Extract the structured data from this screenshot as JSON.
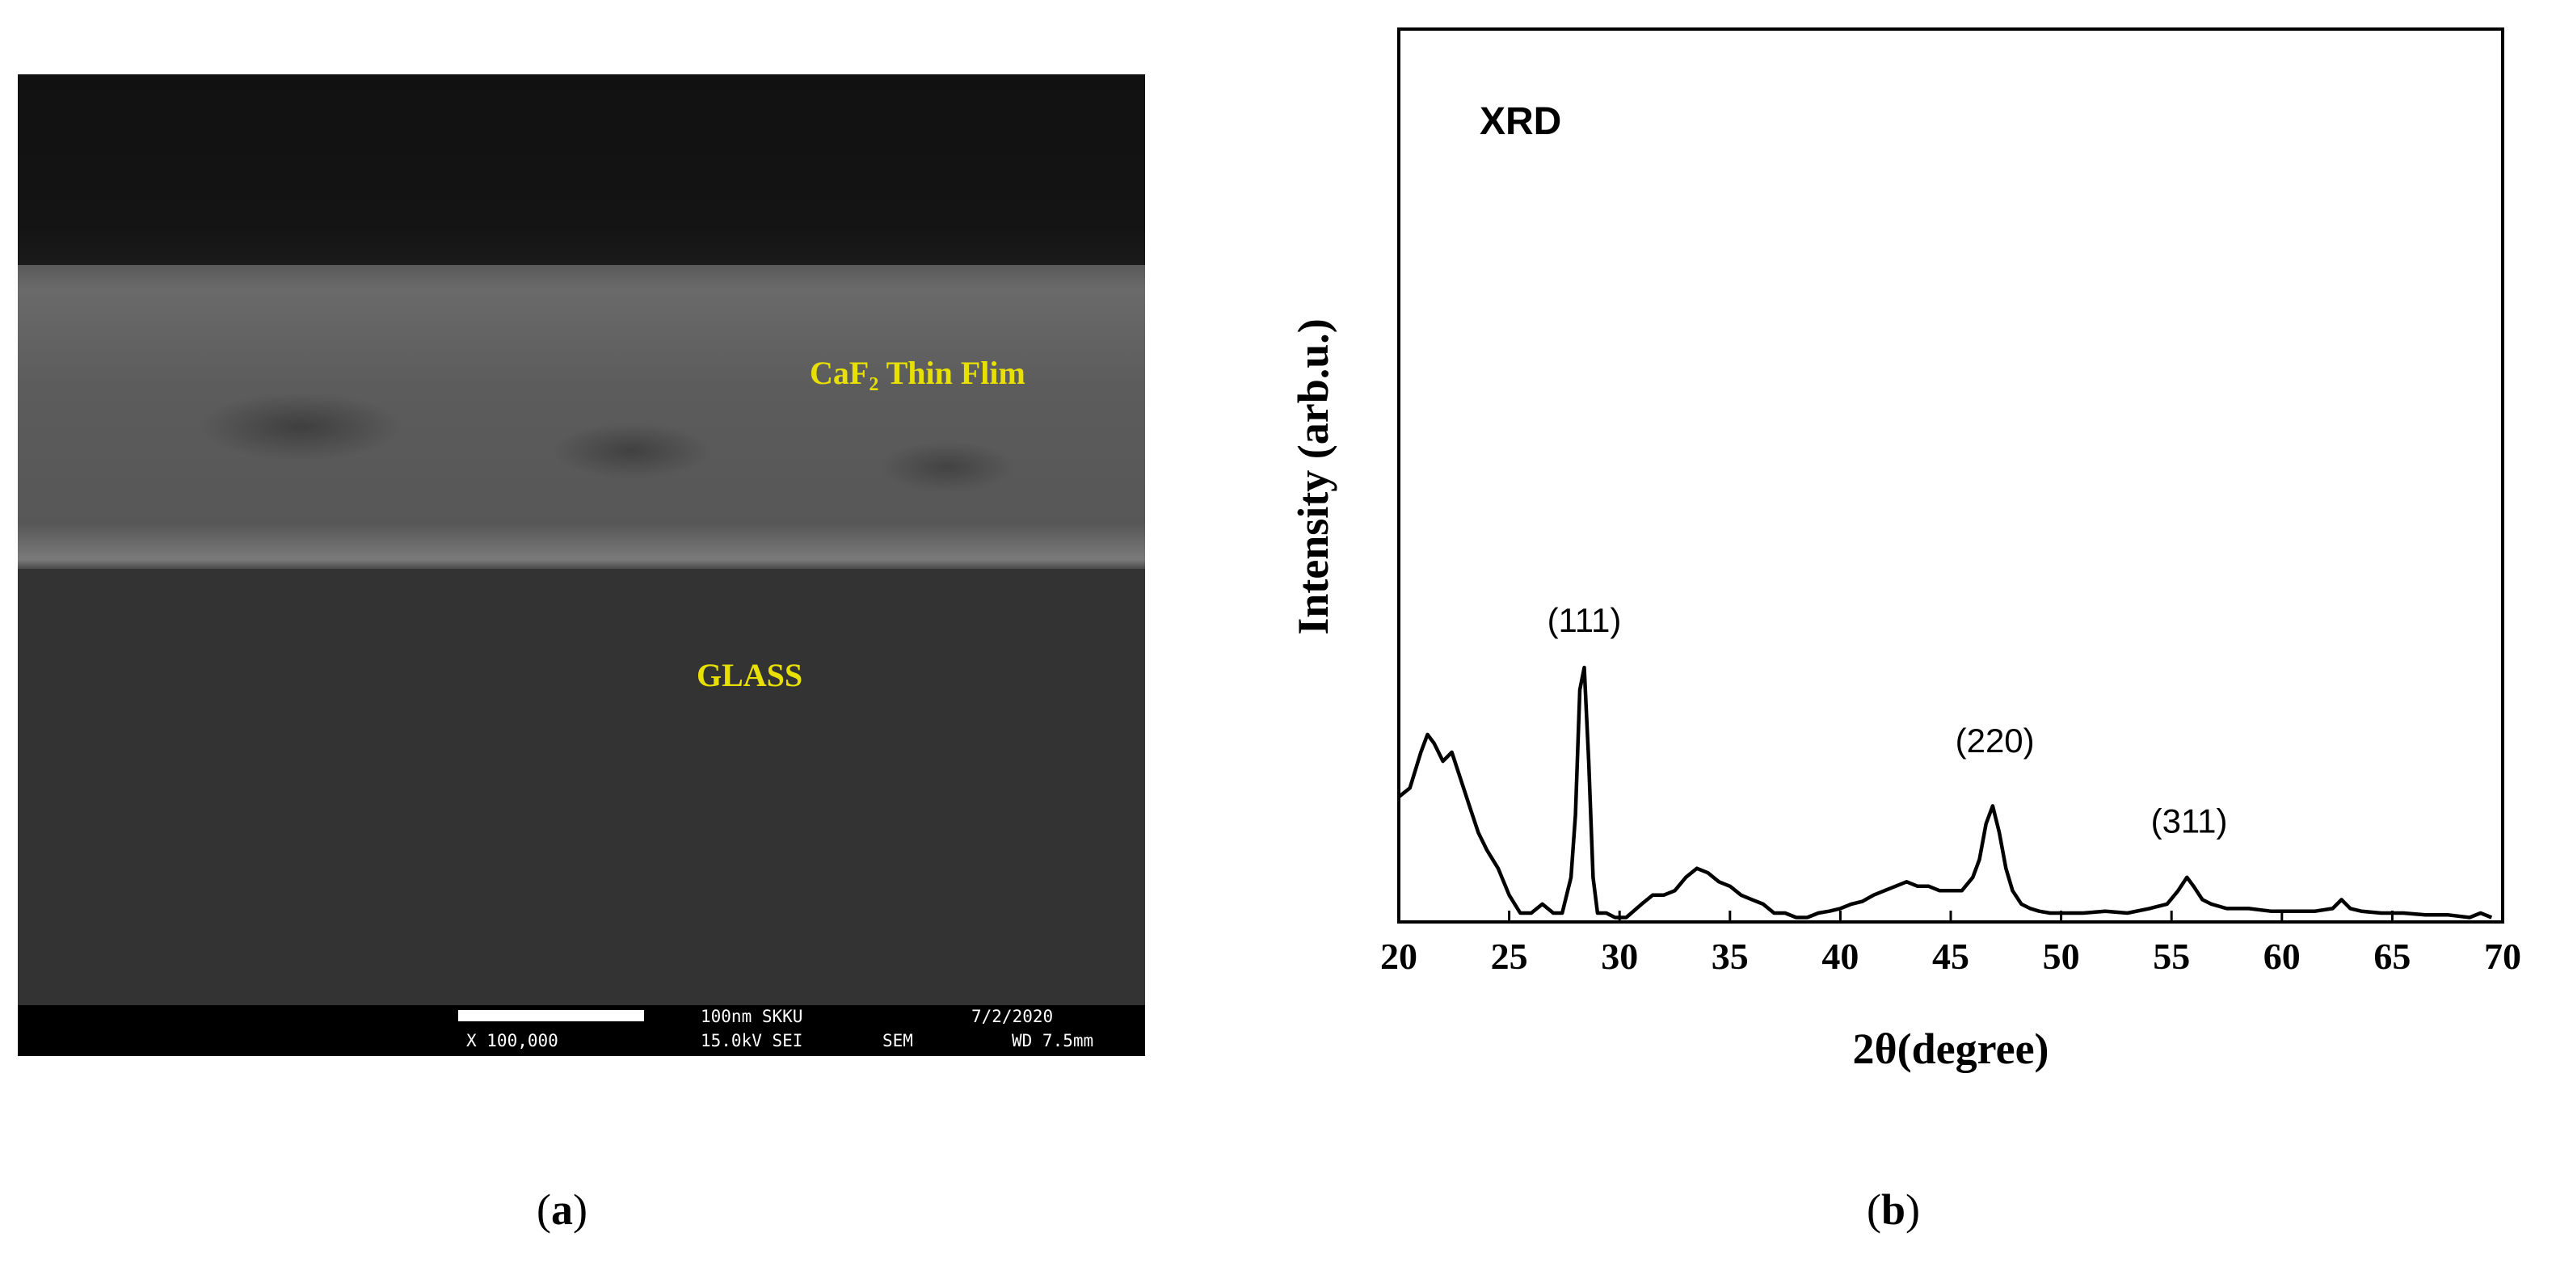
{
  "panel_a": {
    "caption_letter": "a",
    "label_film": "CaF₂ Thin Flim",
    "label_glass": "GLASS",
    "info": {
      "scale": "100nm SKKU",
      "date": "7/2/2020",
      "magnification": "X 100,000",
      "voltage": "15.0kV SEI",
      "mode": "SEM",
      "wd": "WD 7.5mm"
    }
  },
  "panel_b": {
    "caption_letter": "b"
  },
  "chart_data": {
    "type": "line",
    "title": "XRD",
    "xlabel": "2θ(degree)",
    "ylabel": "Intensity (arb.u.)",
    "xlim": [
      20,
      70
    ],
    "ylim": [
      0,
      100
    ],
    "xticks": [
      20,
      25,
      30,
      35,
      40,
      45,
      50,
      55,
      60,
      65,
      70
    ],
    "y_ticks_shown": false,
    "grid": false,
    "annotations": [
      {
        "text": "(111)",
        "x": 28.4,
        "y": 32.5
      },
      {
        "text": "(220)",
        "x": 47.0,
        "y": 19
      },
      {
        "text": "(311)",
        "x": 55.8,
        "y": 10
      }
    ],
    "series": [
      {
        "x": [
          20.0,
          20.5,
          21.0,
          21.3,
          21.6,
          22.0,
          22.4,
          22.8,
          23.2,
          23.6,
          24.0,
          24.5,
          25.0,
          25.5,
          26.0,
          26.5,
          27.0,
          27.4,
          27.8,
          28.0,
          28.2,
          28.4,
          28.6,
          28.8,
          29.0,
          29.4,
          29.8,
          30.3,
          31.0,
          31.5,
          32.0,
          32.5,
          33.0,
          33.5,
          34.0,
          34.5,
          35.0,
          35.5,
          36.0,
          36.5,
          37.0,
          37.5,
          38.0,
          38.5,
          39.0,
          39.5,
          40.0,
          40.5,
          41.0,
          41.5,
          42.0,
          42.5,
          43.0,
          43.5,
          44.0,
          44.5,
          45.0,
          45.5,
          46.0,
          46.3,
          46.6,
          46.9,
          47.2,
          47.5,
          47.8,
          48.2,
          48.6,
          49.0,
          49.5,
          50.0,
          51.0,
          52.0,
          53.0,
          54.0,
          54.8,
          55.3,
          55.7,
          56.0,
          56.4,
          56.8,
          57.5,
          58.5,
          59.5,
          60.5,
          61.5,
          62.3,
          62.7,
          63.1,
          63.6,
          64.5,
          65.5,
          66.5,
          67.5,
          68.5,
          69.0,
          69.5
        ],
        "y": [
          14,
          15,
          19,
          21,
          20,
          18,
          19,
          16,
          13,
          10,
          8,
          6,
          3,
          1,
          1,
          2,
          1,
          1,
          5,
          12,
          26,
          28.5,
          18,
          5,
          1,
          1,
          0.5,
          0.5,
          2,
          3,
          3,
          3.5,
          5,
          6,
          5.5,
          4.5,
          4,
          3,
          2.5,
          2,
          1,
          1,
          0.5,
          0.5,
          1,
          1.2,
          1.5,
          2,
          2.3,
          3,
          3.5,
          4,
          4.5,
          4,
          4,
          3.5,
          3.5,
          3.5,
          5,
          7,
          11,
          13,
          10,
          6,
          3.5,
          2,
          1.5,
          1.2,
          1,
          1,
          1,
          1.2,
          1,
          1.5,
          2,
          3.5,
          5,
          4,
          2.5,
          2,
          1.5,
          1.5,
          1.2,
          1.2,
          1.2,
          1.5,
          2.5,
          1.5,
          1.2,
          1,
          1,
          0.8,
          0.8,
          0.5,
          1,
          0.5
        ]
      }
    ]
  }
}
